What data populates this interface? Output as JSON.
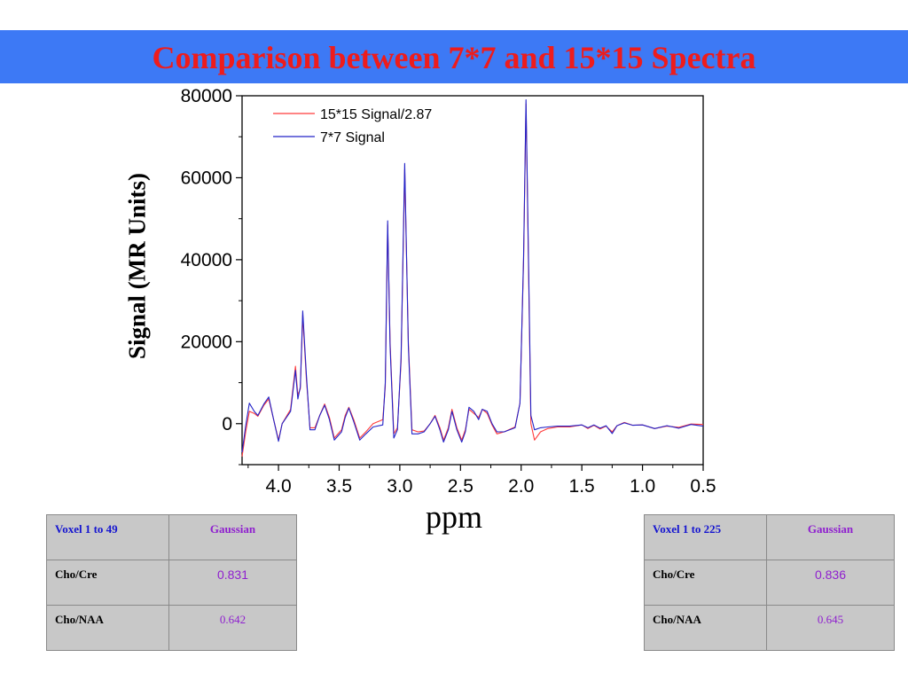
{
  "slide": {
    "title": "Comparison between 7*7 and 15*15 Spectra"
  },
  "chart_data": {
    "type": "line",
    "xlabel": "ppm",
    "ylabel": "Signal (MR Units)",
    "xlim": [
      4.3,
      0.5
    ],
    "ylim": [
      -10000,
      80000
    ],
    "x_reversed": true,
    "x_ticks": [
      "4.0",
      "3.5",
      "3.0",
      "2.5",
      "2.0",
      "1.5",
      "1.0",
      "0.5"
    ],
    "y_ticks": [
      "0",
      "20000",
      "40000",
      "60000",
      "80000"
    ],
    "legend_position": "top-left",
    "series": [
      {
        "name": "15*15 Signal/2.87",
        "color": "#ff3b3b",
        "points": [
          [
            4.3,
            -8000
          ],
          [
            4.27,
            -2000
          ],
          [
            4.24,
            3000
          ],
          [
            4.2,
            2500
          ],
          [
            4.17,
            1800
          ],
          [
            4.12,
            4500
          ],
          [
            4.08,
            6000
          ],
          [
            4.04,
            1000
          ],
          [
            4.0,
            -4000
          ],
          [
            3.97,
            0
          ],
          [
            3.9,
            3500
          ],
          [
            3.86,
            14000
          ],
          [
            3.84,
            7000
          ],
          [
            3.82,
            8500
          ],
          [
            3.8,
            26500
          ],
          [
            3.77,
            11000
          ],
          [
            3.74,
            -1000
          ],
          [
            3.7,
            -1000
          ],
          [
            3.66,
            2000
          ],
          [
            3.62,
            4800
          ],
          [
            3.58,
            1500
          ],
          [
            3.54,
            -3500
          ],
          [
            3.48,
            -1500
          ],
          [
            3.45,
            2000
          ],
          [
            3.42,
            4000
          ],
          [
            3.38,
            1000
          ],
          [
            3.33,
            -3500
          ],
          [
            3.28,
            -2000
          ],
          [
            3.22,
            0
          ],
          [
            3.14,
            1000
          ],
          [
            3.12,
            9000
          ],
          [
            3.1,
            48500
          ],
          [
            3.08,
            20000
          ],
          [
            3.05,
            -2500
          ],
          [
            3.02,
            -1000
          ],
          [
            2.99,
            15000
          ],
          [
            2.96,
            62000
          ],
          [
            2.93,
            20000
          ],
          [
            2.9,
            -1500
          ],
          [
            2.85,
            -2000
          ],
          [
            2.8,
            -1800
          ],
          [
            2.75,
            0
          ],
          [
            2.71,
            2000
          ],
          [
            2.67,
            -1000
          ],
          [
            2.64,
            -4000
          ],
          [
            2.6,
            -1000
          ],
          [
            2.57,
            3500
          ],
          [
            2.53,
            -1000
          ],
          [
            2.49,
            -4000
          ],
          [
            2.46,
            -1500
          ],
          [
            2.43,
            3500
          ],
          [
            2.39,
            2500
          ],
          [
            2.35,
            1500
          ],
          [
            2.32,
            3500
          ],
          [
            2.28,
            2500
          ],
          [
            2.24,
            -300
          ],
          [
            2.2,
            -2500
          ],
          [
            2.14,
            -2000
          ],
          [
            2.05,
            -800
          ],
          [
            2.01,
            5000
          ],
          [
            1.98,
            40000
          ],
          [
            1.96,
            78000
          ],
          [
            1.94,
            40000
          ],
          [
            1.92,
            0
          ],
          [
            1.89,
            -4000
          ],
          [
            1.84,
            -2000
          ],
          [
            1.78,
            -1200
          ],
          [
            1.7,
            -800
          ],
          [
            1.6,
            -800
          ],
          [
            1.5,
            -300
          ],
          [
            1.45,
            -1200
          ],
          [
            1.4,
            -400
          ],
          [
            1.35,
            -1300
          ],
          [
            1.3,
            -600
          ],
          [
            1.25,
            -2000
          ],
          [
            1.21,
            -500
          ],
          [
            1.15,
            300
          ],
          [
            1.08,
            -400
          ],
          [
            1.0,
            -300
          ],
          [
            0.9,
            -1200
          ],
          [
            0.8,
            -600
          ],
          [
            0.7,
            -900
          ],
          [
            0.6,
            -100
          ],
          [
            0.5,
            -200
          ]
        ]
      },
      {
        "name": "7*7 Signal",
        "color": "#2323c8",
        "points": [
          [
            4.3,
            -7000
          ],
          [
            4.27,
            -500
          ],
          [
            4.24,
            5000
          ],
          [
            4.2,
            3000
          ],
          [
            4.17,
            2000
          ],
          [
            4.12,
            4800
          ],
          [
            4.08,
            6500
          ],
          [
            4.04,
            1000
          ],
          [
            4.0,
            -4300
          ],
          [
            3.97,
            0
          ],
          [
            3.9,
            3000
          ],
          [
            3.86,
            13000
          ],
          [
            3.84,
            6000
          ],
          [
            3.82,
            9000
          ],
          [
            3.8,
            27500
          ],
          [
            3.77,
            12000
          ],
          [
            3.74,
            -1500
          ],
          [
            3.7,
            -1500
          ],
          [
            3.66,
            2000
          ],
          [
            3.62,
            4500
          ],
          [
            3.58,
            1000
          ],
          [
            3.54,
            -4000
          ],
          [
            3.48,
            -2000
          ],
          [
            3.45,
            1500
          ],
          [
            3.42,
            3800
          ],
          [
            3.38,
            500
          ],
          [
            3.33,
            -4000
          ],
          [
            3.28,
            -2500
          ],
          [
            3.22,
            -800
          ],
          [
            3.14,
            -300
          ],
          [
            3.12,
            10000
          ],
          [
            3.1,
            49500
          ],
          [
            3.08,
            19000
          ],
          [
            3.05,
            -3500
          ],
          [
            3.02,
            -1500
          ],
          [
            2.99,
            16000
          ],
          [
            2.96,
            63500
          ],
          [
            2.93,
            19000
          ],
          [
            2.9,
            -2500
          ],
          [
            2.85,
            -2500
          ],
          [
            2.8,
            -2000
          ],
          [
            2.75,
            0
          ],
          [
            2.71,
            1800
          ],
          [
            2.67,
            -1500
          ],
          [
            2.64,
            -4500
          ],
          [
            2.6,
            -1500
          ],
          [
            2.57,
            3000
          ],
          [
            2.53,
            -1500
          ],
          [
            2.49,
            -4500
          ],
          [
            2.46,
            -2000
          ],
          [
            2.43,
            4000
          ],
          [
            2.39,
            3000
          ],
          [
            2.35,
            1000
          ],
          [
            2.32,
            3500
          ],
          [
            2.28,
            3000
          ],
          [
            2.24,
            0
          ],
          [
            2.2,
            -2000
          ],
          [
            2.14,
            -2000
          ],
          [
            2.05,
            -1000
          ],
          [
            2.01,
            5000
          ],
          [
            1.98,
            41000
          ],
          [
            1.96,
            79000
          ],
          [
            1.94,
            42000
          ],
          [
            1.92,
            2000
          ],
          [
            1.89,
            -1500
          ],
          [
            1.84,
            -1000
          ],
          [
            1.78,
            -800
          ],
          [
            1.7,
            -600
          ],
          [
            1.6,
            -600
          ],
          [
            1.5,
            -300
          ],
          [
            1.45,
            -1000
          ],
          [
            1.4,
            -300
          ],
          [
            1.35,
            -1100
          ],
          [
            1.3,
            -500
          ],
          [
            1.25,
            -2400
          ],
          [
            1.21,
            -500
          ],
          [
            1.15,
            200
          ],
          [
            1.08,
            -400
          ],
          [
            1.0,
            -300
          ],
          [
            0.9,
            -1200
          ],
          [
            0.8,
            -500
          ],
          [
            0.7,
            -1100
          ],
          [
            0.6,
            -200
          ],
          [
            0.5,
            -600
          ]
        ]
      }
    ]
  },
  "tables": {
    "left": {
      "header": [
        "Voxel  1 to 49",
        "Gaussian"
      ],
      "rows": [
        [
          "Cho/Cre",
          "0.831"
        ],
        [
          "Cho/NAA",
          "0.642"
        ]
      ]
    },
    "right": {
      "header": [
        "Voxel  1 to 225",
        "Gaussian"
      ],
      "rows": [
        [
          "Cho/Cre",
          "0.836"
        ],
        [
          "Cho/NAA",
          "0.645"
        ]
      ]
    }
  }
}
